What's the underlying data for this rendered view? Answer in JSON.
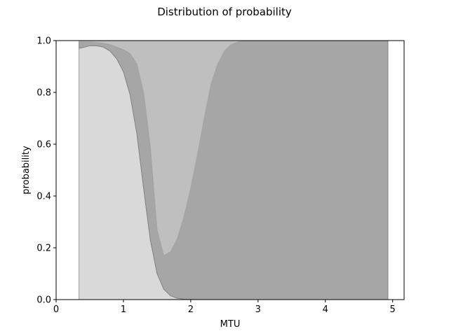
{
  "chart_data": {
    "type": "area",
    "title": "Distribution of probability",
    "xlabel": "MTU",
    "ylabel": "probability",
    "xlim": [
      0,
      5.17
    ],
    "ylim": [
      0,
      1
    ],
    "xticks": [
      0,
      1,
      2,
      3,
      4,
      5
    ],
    "yticks": [
      0.0,
      0.2,
      0.4,
      0.6,
      0.8,
      1.0
    ],
    "xtick_labels": [
      "0",
      "1",
      "2",
      "3",
      "4",
      "5"
    ],
    "ytick_labels": [
      "0.0",
      "0.2",
      "0.4",
      "0.6",
      "0.8",
      "1.0"
    ],
    "grid": false,
    "stacked": true,
    "x": [
      0.34,
      0.5,
      0.6,
      0.7,
      0.8,
      0.9,
      1.0,
      1.1,
      1.2,
      1.3,
      1.4,
      1.5,
      1.6,
      1.7,
      1.8,
      1.9,
      2.0,
      2.1,
      2.2,
      2.3,
      2.4,
      2.5,
      2.6,
      2.7,
      2.8,
      3.0,
      3.5,
      4.0,
      4.5,
      4.93
    ],
    "series": [
      {
        "color": "#d9d9d9",
        "values": [
          0.97,
          0.98,
          0.98,
          0.975,
          0.96,
          0.93,
          0.88,
          0.79,
          0.64,
          0.43,
          0.23,
          0.1,
          0.04,
          0.015,
          0.005,
          0.002,
          0.001,
          0,
          0,
          0,
          0,
          0,
          0,
          0,
          0,
          0,
          0,
          0,
          0,
          0
        ]
      },
      {
        "color": "#a6a6a6",
        "values": [
          0.025,
          0.015,
          0.013,
          0.015,
          0.025,
          0.045,
          0.085,
          0.16,
          0.27,
          0.37,
          0.36,
          0.17,
          0.13,
          0.17,
          0.23,
          0.32,
          0.43,
          0.56,
          0.7,
          0.83,
          0.91,
          0.96,
          0.985,
          0.995,
          1.0,
          1.0,
          1.0,
          1.0,
          1.0,
          1.0
        ]
      },
      {
        "color": "#bfbfbf",
        "values": [
          0.005,
          0.005,
          0.007,
          0.01,
          0.015,
          0.025,
          0.035,
          0.05,
          0.09,
          0.2,
          0.41,
          0.73,
          0.83,
          0.815,
          0.765,
          0.678,
          0.569,
          0.44,
          0.3,
          0.17,
          0.09,
          0.04,
          0.015,
          0.005,
          0,
          0,
          0,
          0,
          0,
          0
        ]
      }
    ]
  }
}
